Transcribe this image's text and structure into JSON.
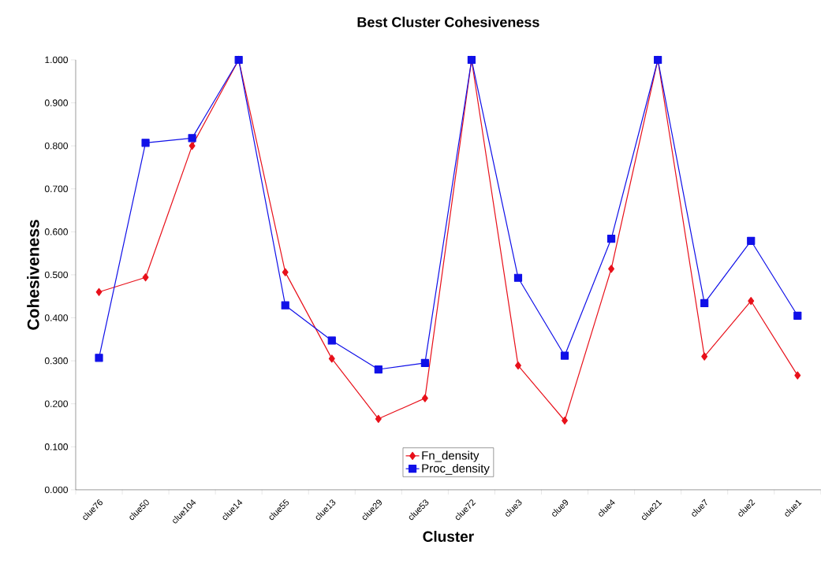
{
  "chart_data": {
    "type": "line",
    "title": "Best Cluster Cohesiveness",
    "xlabel": "Cluster",
    "ylabel": "Cohesiveness",
    "categories": [
      "clue76",
      "clue50",
      "clue104",
      "clue14",
      "clue55",
      "clue13",
      "clue29",
      "clue53",
      "clue72",
      "clue3",
      "clue9",
      "clue4",
      "clue21",
      "clue7",
      "clue2",
      "clue1"
    ],
    "series": [
      {
        "name": "Fn_density",
        "color": "#e8101a",
        "marker": "diamond",
        "values": [
          0.46,
          0.494,
          0.8,
          1.0,
          0.506,
          0.305,
          0.165,
          0.213,
          1.0,
          0.289,
          0.161,
          0.514,
          1.0,
          0.31,
          0.439,
          0.266
        ]
      },
      {
        "name": "Proc_density",
        "color": "#1010e8",
        "marker": "square",
        "values": [
          0.307,
          0.807,
          0.818,
          1.0,
          0.429,
          0.347,
          0.28,
          0.295,
          1.0,
          0.493,
          0.312,
          0.584,
          1.0,
          0.434,
          0.579,
          0.405
        ]
      }
    ],
    "ylim": [
      0,
      1.0
    ],
    "yticks": [
      {
        "value": 0,
        "label": "0.000"
      },
      {
        "value": 0.1,
        "label": "0.100"
      },
      {
        "value": 0.2,
        "label": "0.200"
      },
      {
        "value": 0.3,
        "label": "0.300"
      },
      {
        "value": 0.4,
        "label": "0.400"
      },
      {
        "value": 0.5,
        "label": "0.500"
      },
      {
        "value": 0.6,
        "label": "0.600"
      },
      {
        "value": 0.7,
        "label": "0.700"
      },
      {
        "value": 0.8,
        "label": "0.800"
      },
      {
        "value": 0.9,
        "label": "0.900"
      },
      {
        "value": 1.0,
        "label": "1.000"
      }
    ],
    "legend": "bottom",
    "grid": false,
    "line_style": "solid"
  }
}
